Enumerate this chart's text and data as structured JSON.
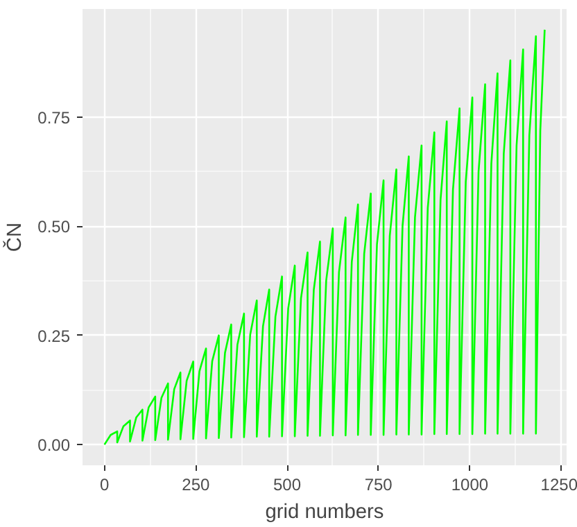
{
  "chart_data": {
    "type": "line",
    "xlabel": "grid numbers",
    "ylabel": "ČN",
    "xlim": [
      -60,
      1265
    ],
    "ylim": [
      -0.0475,
      0.9975
    ],
    "xticks": [
      0,
      250,
      500,
      750,
      1000,
      1250
    ],
    "yticks": [
      {
        "value": 0,
        "label": "0.00"
      },
      {
        "value": 0.25,
        "label": "0.25"
      },
      {
        "value": 0.5,
        "label": "0.50"
      },
      {
        "value": 0.75,
        "label": "0.75"
      }
    ],
    "grid": true,
    "series": [
      {
        "color": "#00ff00",
        "x": [
          0,
          17,
          35,
          35,
          52,
          70,
          70,
          87,
          104,
          104,
          121,
          139,
          139,
          156,
          174,
          174,
          191,
          208,
          208,
          225,
          243,
          243,
          260,
          278,
          278,
          295,
          313,
          313,
          330,
          347,
          347,
          364,
          382,
          382,
          399,
          417,
          417,
          434,
          451,
          451,
          468,
          486,
          486,
          503,
          521,
          521,
          538,
          556,
          556,
          573,
          590,
          590,
          607,
          625,
          625,
          642,
          660,
          660,
          677,
          694,
          694,
          711,
          729,
          729,
          746,
          764,
          764,
          781,
          799,
          799,
          816,
          833,
          833,
          850,
          868,
          868,
          885,
          903,
          903,
          920,
          937,
          937,
          954,
          972,
          972,
          989,
          1007,
          1007,
          1024,
          1042,
          1042,
          1059,
          1076,
          1076,
          1093,
          1111,
          1111,
          1128,
          1146,
          1146,
          1163,
          1181,
          1181,
          1193,
          1205
        ],
        "values": [
          0,
          0.022,
          0.03,
          0.005,
          0.042,
          0.055,
          0.007,
          0.062,
          0.08,
          0.009,
          0.085,
          0.11,
          0.01,
          0.107,
          0.14,
          0.011,
          0.127,
          0.165,
          0.012,
          0.146,
          0.19,
          0.013,
          0.168,
          0.22,
          0.014,
          0.191,
          0.25,
          0.015,
          0.21,
          0.275,
          0.016,
          0.229,
          0.3,
          0.017,
          0.252,
          0.33,
          0.018,
          0.271,
          0.355,
          0.018,
          0.293,
          0.385,
          0.019,
          0.312,
          0.41,
          0.019,
          0.335,
          0.44,
          0.02,
          0.354,
          0.465,
          0.02,
          0.376,
          0.495,
          0.021,
          0.395,
          0.52,
          0.021,
          0.418,
          0.55,
          0.022,
          0.437,
          0.575,
          0.022,
          0.459,
          0.605,
          0.022,
          0.478,
          0.63,
          0.023,
          0.501,
          0.66,
          0.023,
          0.52,
          0.685,
          0.023,
          0.542,
          0.715,
          0.024,
          0.561,
          0.74,
          0.024,
          0.584,
          0.77,
          0.024,
          0.602,
          0.795,
          0.024,
          0.625,
          0.825,
          0.025,
          0.644,
          0.85,
          0.025,
          0.666,
          0.88,
          0.025,
          0.685,
          0.905,
          0.025,
          0.708,
          0.935,
          0.025,
          0.719,
          0.95
        ]
      }
    ]
  }
}
